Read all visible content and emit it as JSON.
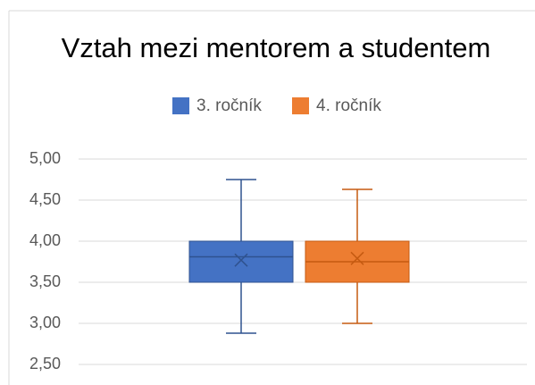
{
  "chart_data": {
    "type": "box",
    "title": "Vztah mezi mentorem a studentem",
    "series": [
      {
        "name": "3. ročník",
        "color": "#4472c4",
        "line_color": "#2f528f",
        "min": 2.88,
        "q1": 3.5,
        "median": 3.81,
        "q3": 4.0,
        "max": 4.75,
        "mean": 3.77
      },
      {
        "name": "4. ročník",
        "color": "#ed7d31",
        "line_color": "#c55a11",
        "min": 3.0,
        "q1": 3.5,
        "median": 3.75,
        "q3": 4.0,
        "max": 4.63,
        "mean": 3.79
      }
    ],
    "ylim": [
      2.5,
      5.0
    ],
    "yticks": [
      {
        "value": 2.5,
        "label": "2,50"
      },
      {
        "value": 3.0,
        "label": "3,00"
      },
      {
        "value": 3.5,
        "label": "3,50"
      },
      {
        "value": 4.0,
        "label": "4,00"
      },
      {
        "value": 4.5,
        "label": "4,50"
      },
      {
        "value": 5.0,
        "label": "5,00"
      }
    ],
    "grid": true,
    "legend": "top"
  }
}
